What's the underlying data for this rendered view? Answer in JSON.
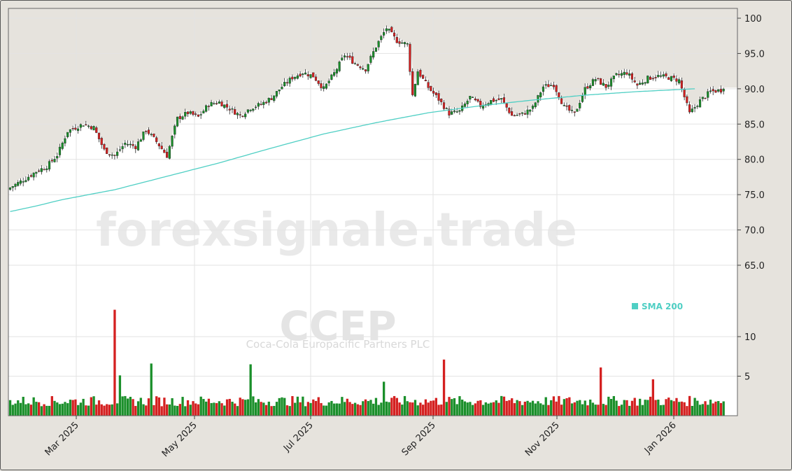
{
  "chart_data": {
    "type": "candlestick",
    "watermark": "forexsignale.trade",
    "symbol": "CCEP",
    "company": "Coca-Cola Europacific Partners PLC",
    "price_axis": {
      "ylim": [
        60.0,
        101.5
      ],
      "ticks": [
        "100",
        "95.0",
        "90.0",
        "85.0",
        "80.0",
        "75.0",
        "70.0",
        "65.0"
      ]
    },
    "volume_axis": {
      "ylim": [
        0,
        14
      ],
      "ticks": [
        "10",
        "5"
      ]
    },
    "x_ticks": [
      "Mar 2025",
      "May 2025",
      "Jul 2025",
      "Sep 2025",
      "Nov 2025",
      "Jan 2026"
    ],
    "legend": [
      {
        "name": "SMA 200",
        "color": "#4fcfc4"
      }
    ],
    "colors": {
      "up": "#1a8f2a",
      "down": "#d42020",
      "sma": "#4fcfc4",
      "grid": "#e3e3e3"
    },
    "price_key": [
      [
        0,
        76.0
      ],
      [
        6,
        77.3
      ],
      [
        10,
        78.3
      ],
      [
        14,
        79.0
      ],
      [
        18,
        80.6
      ],
      [
        22,
        84.0
      ],
      [
        28,
        85.0
      ],
      [
        32,
        84.5
      ],
      [
        36,
        81.3
      ],
      [
        40,
        80.5
      ],
      [
        44,
        82.3
      ],
      [
        48,
        81.8
      ],
      [
        52,
        84.2
      ],
      [
        56,
        82.5
      ],
      [
        60,
        80.5
      ],
      [
        64,
        85.8
      ],
      [
        68,
        86.6
      ],
      [
        72,
        86.0
      ],
      [
        76,
        87.8
      ],
      [
        80,
        88.1
      ],
      [
        84,
        87.2
      ],
      [
        88,
        86.2
      ],
      [
        92,
        87.3
      ],
      [
        96,
        87.8
      ],
      [
        100,
        88.7
      ],
      [
        104,
        90.3
      ],
      [
        108,
        91.6
      ],
      [
        112,
        92.3
      ],
      [
        116,
        91.8
      ],
      [
        120,
        90.0
      ],
      [
        124,
        92.2
      ],
      [
        128,
        94.8
      ],
      [
        132,
        93.6
      ],
      [
        136,
        92.8
      ],
      [
        140,
        96.0
      ],
      [
        144,
        98.6
      ],
      [
        148,
        96.8
      ],
      [
        152,
        96.3
      ],
      [
        154,
        89.1
      ],
      [
        156,
        92.5
      ],
      [
        160,
        90.2
      ],
      [
        164,
        88.5
      ],
      [
        168,
        86.5
      ],
      [
        172,
        86.8
      ],
      [
        176,
        88.8
      ],
      [
        180,
        87.6
      ],
      [
        184,
        88.3
      ],
      [
        188,
        88.5
      ],
      [
        192,
        86.2
      ],
      [
        196,
        86.4
      ],
      [
        200,
        87.3
      ],
      [
        204,
        90.3
      ],
      [
        208,
        90.6
      ],
      [
        212,
        87.4
      ],
      [
        216,
        86.4
      ],
      [
        220,
        90.0
      ],
      [
        224,
        91.4
      ],
      [
        228,
        90.3
      ],
      [
        232,
        91.9
      ],
      [
        236,
        92.3
      ],
      [
        240,
        90.5
      ],
      [
        244,
        91.5
      ],
      [
        248,
        91.8
      ],
      [
        252,
        91.6
      ],
      [
        256,
        91.2
      ],
      [
        260,
        86.5
      ],
      [
        264,
        88.3
      ],
      [
        268,
        89.6
      ],
      [
        272,
        89.8
      ],
      [
        273,
        90.3
      ]
    ],
    "sma_key": [
      [
        0,
        72.6
      ],
      [
        10,
        73.4
      ],
      [
        20,
        74.3
      ],
      [
        40,
        75.7
      ],
      [
        60,
        77.6
      ],
      [
        80,
        79.5
      ],
      [
        100,
        81.6
      ],
      [
        120,
        83.6
      ],
      [
        140,
        85.2
      ],
      [
        160,
        86.6
      ],
      [
        180,
        87.6
      ],
      [
        200,
        88.4
      ],
      [
        220,
        89.1
      ],
      [
        240,
        89.6
      ],
      [
        262,
        90.0
      ]
    ],
    "volume_spikes": {
      "40": 13.4,
      "42": 5.1,
      "54": 6.6,
      "92": 6.5,
      "166": 7.1,
      "226": 6.1,
      "246": 4.6,
      "143": 4.3
    }
  }
}
